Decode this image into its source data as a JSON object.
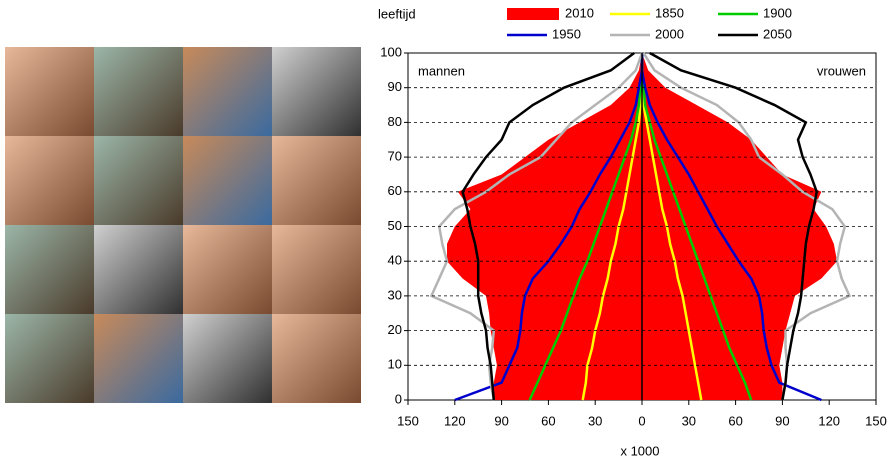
{
  "chart_data": {
    "type": "population-pyramid",
    "ylabel": "leeftijd",
    "xlabel": "x 1000",
    "left_label": "mannen",
    "right_label": "vrouwen",
    "ages": [
      0,
      5,
      10,
      15,
      20,
      25,
      30,
      35,
      40,
      45,
      50,
      55,
      60,
      65,
      70,
      75,
      80,
      85,
      90,
      95,
      100
    ],
    "xlim": [
      -150,
      150
    ],
    "xticks": [
      {
        "value": -150,
        "label": "150"
      },
      {
        "value": -120,
        "label": "120"
      },
      {
        "value": -90,
        "label": "90"
      },
      {
        "value": -60,
        "label": "60"
      },
      {
        "value": -30,
        "label": "30"
      },
      0,
      30,
      60,
      90,
      120,
      150
    ],
    "ylim": [
      0,
      100
    ],
    "yticks": [
      0,
      10,
      20,
      30,
      40,
      50,
      60,
      70,
      80,
      90,
      100
    ],
    "grid": true,
    "series": [
      {
        "name": "2010",
        "color": "#ff0000",
        "style": "area",
        "men": [
          -95,
          -95,
          -93,
          -95,
          -97,
          -98,
          -100,
          -115,
          -125,
          -125,
          -120,
          -110,
          -118,
          -90,
          -75,
          -60,
          -40,
          -20,
          -8,
          -2,
          0
        ],
        "women": [
          90,
          90,
          88,
          90,
          92,
          95,
          98,
          115,
          125,
          123,
          118,
          110,
          115,
          90,
          80,
          70,
          55,
          35,
          15,
          4,
          0
        ]
      },
      {
        "name": "1850",
        "color": "#ffff00",
        "style": "line",
        "men": [
          -38,
          -36,
          -35,
          -32,
          -30,
          -27,
          -25,
          -22,
          -20,
          -17,
          -15,
          -12,
          -10,
          -8,
          -6,
          -4,
          -2,
          -1,
          0,
          0,
          0
        ],
        "women": [
          38,
          36,
          34,
          32,
          30,
          28,
          26,
          23,
          21,
          18,
          16,
          13,
          11,
          9,
          7,
          5,
          3,
          1,
          0,
          0,
          0
        ]
      },
      {
        "name": "1900",
        "color": "#00cc00",
        "style": "line",
        "men": [
          -72,
          -67,
          -62,
          -57,
          -52,
          -48,
          -44,
          -40,
          -35,
          -31,
          -27,
          -23,
          -19,
          -15,
          -11,
          -7,
          -4,
          -2,
          -1,
          0,
          0
        ],
        "women": [
          70,
          66,
          61,
          56,
          52,
          48,
          44,
          40,
          36,
          32,
          28,
          24,
          20,
          16,
          12,
          8,
          5,
          2,
          1,
          0,
          0
        ]
      },
      {
        "name": "1950",
        "color": "#0000cc",
        "style": "line",
        "men": [
          -120,
          -90,
          -85,
          -80,
          -78,
          -77,
          -75,
          -70,
          -60,
          -52,
          -45,
          -40,
          -33,
          -27,
          -20,
          -14,
          -8,
          -4,
          -2,
          0,
          0
        ],
        "women": [
          115,
          88,
          83,
          80,
          78,
          77,
          75,
          70,
          62,
          55,
          48,
          42,
          36,
          30,
          23,
          16,
          10,
          5,
          2,
          0,
          0
        ]
      },
      {
        "name": "2000",
        "color": "#b4b4b4",
        "style": "line",
        "men": [
          -95,
          -97,
          -98,
          -96,
          -95,
          -110,
          -135,
          -130,
          -125,
          -128,
          -130,
          -120,
          -100,
          -85,
          -65,
          -55,
          -45,
          -30,
          -15,
          -4,
          0
        ],
        "women": [
          90,
          92,
          93,
          92,
          92,
          108,
          133,
          128,
          125,
          127,
          130,
          122,
          103,
          90,
          75,
          70,
          62,
          48,
          25,
          8,
          1
        ]
      },
      {
        "name": "2050",
        "color": "#000000",
        "style": "line",
        "men": [
          -95,
          -96,
          -97,
          -99,
          -100,
          -103,
          -105,
          -105,
          -105,
          -107,
          -110,
          -112,
          -115,
          -108,
          -100,
          -90,
          -85,
          -70,
          -50,
          -20,
          -5
        ],
        "women": [
          90,
          92,
          93,
          95,
          97,
          100,
          102,
          103,
          104,
          105,
          107,
          110,
          112,
          108,
          103,
          100,
          105,
          85,
          60,
          25,
          5
        ]
      }
    ]
  }
}
